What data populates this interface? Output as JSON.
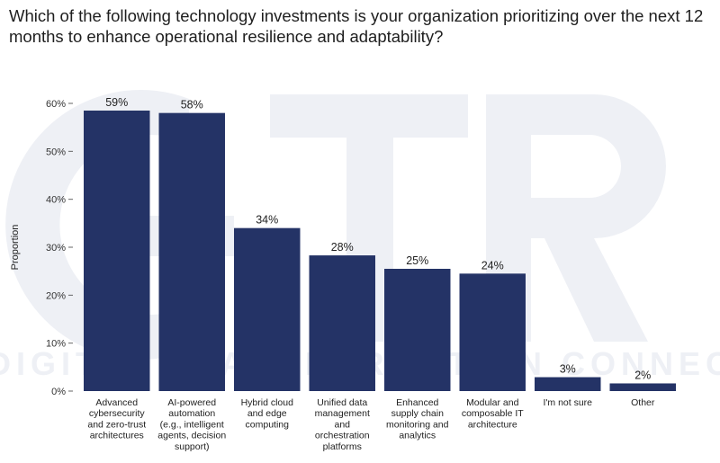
{
  "title": "Which of the following technology investments is your organization prioritizing over the next 12 months to enhance operational resilience and adaptability?",
  "watermark_text": "DIGITAL TRANSFORMATION CONNECT",
  "chart_data": {
    "type": "bar",
    "title": "Which of the following technology investments is your organization prioritizing over the next 12 months to enhance operational resilience and adaptability?",
    "ylabel": "Proportion",
    "xlabel": "",
    "ylim": [
      0,
      0.6
    ],
    "yticks": [
      0,
      0.1,
      0.2,
      0.3,
      0.4,
      0.5,
      0.6
    ],
    "ytick_labels": [
      "0%",
      "10%",
      "20%",
      "30%",
      "40%",
      "50%",
      "60%"
    ],
    "grid": false,
    "bar_color": "#243366",
    "categories": [
      [
        "Advanced",
        "cybersecurity",
        "and zero-trust",
        "architectures"
      ],
      [
        "AI-powered",
        "automation",
        "(e.g., intelligent",
        "agents, decision",
        "support)"
      ],
      [
        "Hybrid cloud",
        "and edge",
        "computing"
      ],
      [
        "Unified data",
        "management",
        "and",
        "orchestration",
        "platforms"
      ],
      [
        "Enhanced",
        "supply chain",
        "monitoring and",
        "analytics"
      ],
      [
        "Modular and",
        "composable IT",
        "architecture"
      ],
      [
        "I'm not sure"
      ],
      [
        "Other"
      ]
    ],
    "values": [
      0.585,
      0.58,
      0.34,
      0.283,
      0.255,
      0.245,
      0.029,
      0.016
    ],
    "value_labels": [
      "59%",
      "58%",
      "34%",
      "28%",
      "25%",
      "24%",
      "3%",
      "2%"
    ]
  }
}
